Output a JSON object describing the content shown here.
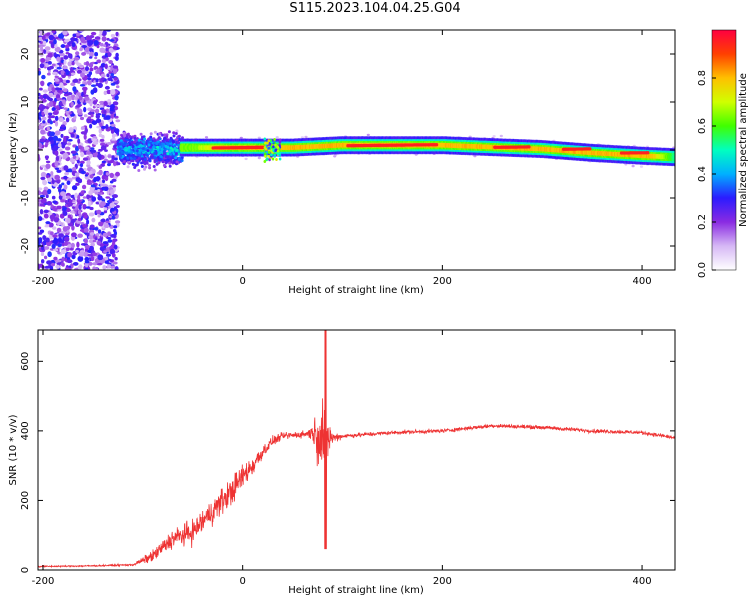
{
  "title": "S115.2023.104.04.25.G04",
  "chart_data": [
    {
      "type": "heatmap",
      "name": "spectrogram",
      "xlabel": "Height of straight line (km)",
      "ylabel": "Frequency (Hz)",
      "xlim": [
        -205,
        433
      ],
      "ylim": [
        -25,
        25
      ],
      "x_ticks": [
        -200,
        0,
        200,
        400
      ],
      "y_ticks": [
        -20,
        -10,
        0,
        10,
        20
      ],
      "colorbar": {
        "label": "Normalized spectral amplitude",
        "range": [
          0,
          1
        ],
        "ticks": [
          "0.0",
          "0.2",
          "0.4",
          "0.6",
          "0.8"
        ],
        "colors": [
          "#ffffff",
          "#d6b8f5",
          "#8a2be2",
          "#2b1bff",
          "#00b0ff",
          "#00ffc0",
          "#40ff00",
          "#d0ff00",
          "#ffc000",
          "#ff4000",
          "#ff0040"
        ]
      },
      "ridge": {
        "x": [
          -50,
          0,
          50,
          100,
          150,
          200,
          250,
          300,
          350,
          400,
          433
        ],
        "freq_hz": [
          0.5,
          0.5,
          0.5,
          1.0,
          1.0,
          1.0,
          0.6,
          0.2,
          -0.6,
          -1.2,
          -1.5
        ],
        "peak_amplitude": [
          0.6,
          0.9,
          0.8,
          0.85,
          0.85,
          0.8,
          0.9,
          0.8,
          0.9,
          0.9,
          0.5
        ]
      },
      "noise_region": {
        "x": [
          -205,
          -125
        ],
        "freq_hz": [
          -25,
          25
        ],
        "amplitude": 0.15
      },
      "disturbed_region": {
        "x": [
          -125,
          -60
        ],
        "freq_hz": [
          -6,
          6
        ],
        "amplitude": 0.4
      },
      "spike_region": {
        "x": [
          22,
          38
        ],
        "freq_hz": [
          -4,
          4
        ],
        "amplitude": 0.5
      }
    },
    {
      "type": "line",
      "name": "snr",
      "xlabel": "Height of straight line (km)",
      "ylabel": "SNR (10 * v/v)",
      "xlim": [
        -205,
        433
      ],
      "ylim": [
        0,
        690
      ],
      "x_ticks": [
        -200,
        0,
        200,
        400
      ],
      "y_ticks": [
        0,
        200,
        400,
        600
      ],
      "color": "#ee3333",
      "series": [
        {
          "x": [
            -205,
            -150,
            -110,
            -90,
            -70,
            -50,
            -30,
            -10,
            0,
            10,
            20,
            30,
            40,
            60,
            70,
            80,
            90,
            100,
            150,
            200,
            250,
            300,
            350,
            400,
            433
          ],
          "y": [
            10,
            12,
            15,
            40,
            90,
            110,
            170,
            230,
            270,
            300,
            340,
            370,
            385,
            390,
            395,
            385,
            380,
            385,
            395,
            400,
            415,
            410,
            400,
            395,
            380
          ],
          "noise_amplitude": [
            3,
            3,
            4,
            25,
            40,
            50,
            55,
            60,
            50,
            45,
            30,
            20,
            15,
            15,
            30,
            200,
            25,
            10,
            8,
            8,
            8,
            8,
            8,
            8,
            8
          ]
        }
      ],
      "spike": {
        "x": 83,
        "y_min": 60,
        "y_max": 690
      }
    }
  ]
}
